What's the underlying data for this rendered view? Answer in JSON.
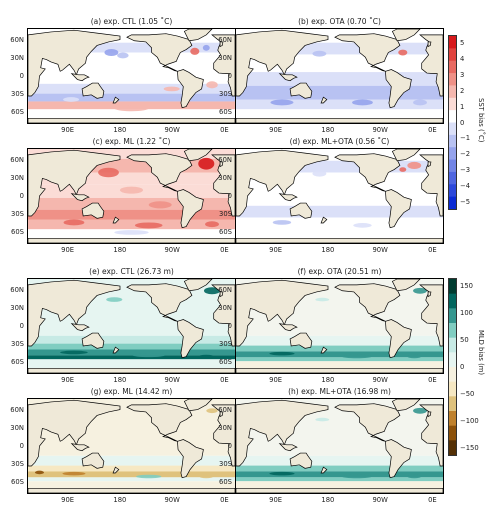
{
  "panels": [
    {
      "id": "a",
      "title": "(a) exp. CTL (1.05 ˚C)",
      "kind": "sst-warm-cold"
    },
    {
      "id": "b",
      "title": "(b) exp. OTA (0.70 ˚C)",
      "kind": "sst-cold"
    },
    {
      "id": "c",
      "title": "(c) exp. ML (1.22 ˚C)",
      "kind": "sst-warm"
    },
    {
      "id": "d",
      "title": "(d) exp. ML+OTA (0.56 ˚C)",
      "kind": "sst-light"
    },
    {
      "id": "e",
      "title": "(e) exp. CTL (26.73 m)",
      "kind": "mld-strong"
    },
    {
      "id": "f",
      "title": "(f) exp. OTA (20.51 m)",
      "kind": "mld-mid"
    },
    {
      "id": "g",
      "title": "(g) exp. ML (14.42 m)",
      "kind": "mld-weak"
    },
    {
      "id": "h",
      "title": "(h) exp. ML+OTA (16.98 m)",
      "kind": "mld-mid"
    }
  ],
  "lat_labels": [
    "60N",
    "30N",
    "0",
    "30S",
    "60S"
  ],
  "lon_labels": [
    "90E",
    "180",
    "90W",
    "0E"
  ],
  "sst_colorbar": {
    "label": "SST bias (˚C)",
    "ticks": [
      "5",
      "4",
      "3",
      "2",
      "1",
      "0",
      "−1",
      "−2",
      "−3",
      "−4",
      "−5"
    ],
    "colors": [
      "#d7191c",
      "#e0433e",
      "#e86a62",
      "#ef9187",
      "#f5b7ae",
      "#fbdcd6",
      "#ffffff",
      "#dbe0f8",
      "#b8c2f2",
      "#95a3ec",
      "#7285e6",
      "#4f66e0",
      "#2c48da",
      "#0b2bd4"
    ]
  },
  "mld_colorbar": {
    "label": "MLD bias (m)",
    "ticks": [
      "150",
      "100",
      "50",
      "0",
      "−50",
      "−100",
      "−150"
    ],
    "colors": [
      "#003c30",
      "#01665e",
      "#35978f",
      "#80cdc1",
      "#c7eae5",
      "#e6f5f1",
      "#f6f1e0",
      "#f6e8c3",
      "#dfc27d",
      "#bf812d",
      "#8c510a",
      "#543005"
    ]
  },
  "colors": {
    "land": "#efe9d8",
    "ocean_base": "#ffffff"
  }
}
